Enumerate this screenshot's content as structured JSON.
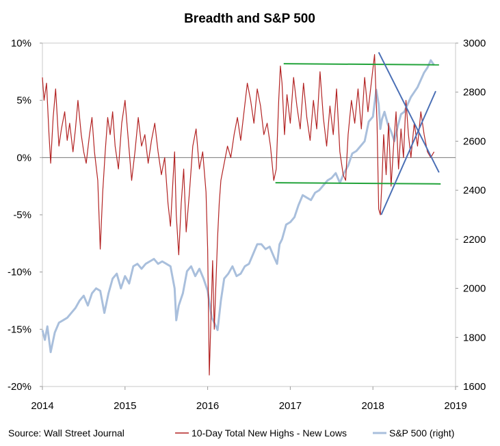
{
  "chart_data": {
    "type": "line",
    "title": "Breadth and S&P 500",
    "source": "Source: Wall Street Journal",
    "x_ticks": [
      "2014",
      "2015",
      "2016",
      "2017",
      "2018",
      "2019"
    ],
    "xlim": [
      2014,
      2019
    ],
    "y_left": {
      "ticks": [
        "10%",
        "5%",
        "0%",
        "-5%",
        "-10%",
        "-15%",
        "-20%"
      ],
      "lim": [
        -20,
        10
      ]
    },
    "y_right": {
      "ticks": [
        "3000",
        "2800",
        "2600",
        "2400",
        "2200",
        "2000",
        "1800",
        "1600"
      ],
      "lim": [
        1600,
        3000
      ]
    },
    "grid": false,
    "legend": "bottom",
    "series": [
      {
        "name": "10-Day Total New Highs - New Lows",
        "axis": "left",
        "color": "#b22222",
        "x": [
          2014.0,
          2014.02,
          2014.05,
          2014.08,
          2014.1,
          2014.13,
          2014.16,
          2014.2,
          2014.23,
          2014.27,
          2014.3,
          2014.33,
          2014.37,
          2014.4,
          2014.43,
          2014.47,
          2014.5,
          2014.53,
          2014.57,
          2014.6,
          2014.63,
          2014.67,
          2014.7,
          2014.73,
          2014.76,
          2014.79,
          2014.82,
          2014.85,
          2014.88,
          2014.92,
          2014.96,
          2015.0,
          2015.04,
          2015.08,
          2015.12,
          2015.16,
          2015.2,
          2015.24,
          2015.28,
          2015.32,
          2015.36,
          2015.4,
          2015.44,
          2015.48,
          2015.52,
          2015.55,
          2015.58,
          2015.6,
          2015.62,
          2015.65,
          2015.68,
          2015.71,
          2015.74,
          2015.78,
          2015.82,
          2015.86,
          2015.9,
          2015.94,
          2015.98,
          2016.0,
          2016.02,
          2016.04,
          2016.06,
          2016.08,
          2016.1,
          2016.12,
          2016.14,
          2016.16,
          2016.2,
          2016.24,
          2016.28,
          2016.32,
          2016.36,
          2016.4,
          2016.44,
          2016.48,
          2016.52,
          2016.56,
          2016.6,
          2016.64,
          2016.68,
          2016.72,
          2016.76,
          2016.8,
          2016.83,
          2016.86,
          2016.88,
          2016.9,
          2016.93,
          2016.96,
          2017.0,
          2017.04,
          2017.08,
          2017.12,
          2017.16,
          2017.2,
          2017.24,
          2017.28,
          2017.32,
          2017.36,
          2017.4,
          2017.44,
          2017.48,
          2017.52,
          2017.56,
          2017.6,
          2017.64,
          2017.67,
          2017.7,
          2017.74,
          2017.78,
          2017.82,
          2017.86,
          2017.9,
          2017.94,
          2017.98,
          2018.02,
          2018.05,
          2018.07,
          2018.09,
          2018.11,
          2018.13,
          2018.16,
          2018.19,
          2018.22,
          2018.25,
          2018.28,
          2018.31,
          2018.34,
          2018.37,
          2018.4,
          2018.43,
          2018.46,
          2018.5,
          2018.54,
          2018.58,
          2018.62,
          2018.66,
          2018.7,
          2018.74
        ],
        "values": [
          7.0,
          5.0,
          6.5,
          2.0,
          -0.5,
          3.5,
          6.0,
          1.0,
          2.5,
          4.0,
          1.5,
          3.0,
          0.5,
          2.5,
          5.0,
          2.0,
          0.5,
          -0.5,
          2.0,
          3.5,
          0.5,
          -2.0,
          -8.0,
          -3.0,
          0.5,
          3.5,
          2.0,
          4.0,
          1.0,
          -1.0,
          3.0,
          5.0,
          1.5,
          -2.0,
          0.5,
          3.5,
          1.0,
          2.0,
          -0.5,
          1.5,
          3.0,
          0.5,
          -1.5,
          0.0,
          -4.0,
          -6.0,
          -2.0,
          0.5,
          -5.0,
          -8.5,
          -4.0,
          -1.0,
          -6.5,
          -3.0,
          1.0,
          2.5,
          -1.0,
          0.5,
          -3.0,
          -8.0,
          -19.0,
          -14.0,
          -9.0,
          -15.0,
          -11.0,
          -7.0,
          -4.0,
          -2.0,
          -0.5,
          1.0,
          0.0,
          2.0,
          3.5,
          1.5,
          4.0,
          6.5,
          5.0,
          3.0,
          6.0,
          4.5,
          2.0,
          3.0,
          1.0,
          -2.0,
          -1.0,
          5.0,
          8.0,
          6.5,
          2.0,
          5.5,
          3.0,
          7.0,
          4.5,
          2.5,
          6.5,
          3.5,
          1.5,
          5.0,
          2.5,
          7.5,
          3.5,
          1.0,
          4.5,
          2.0,
          6.0,
          0.5,
          -1.5,
          -2.0,
          2.0,
          5.0,
          3.0,
          6.0,
          2.5,
          7.0,
          4.0,
          6.5,
          9.0,
          3.0,
          -4.5,
          -5.0,
          -2.0,
          2.0,
          -1.5,
          3.0,
          -2.5,
          1.0,
          4.0,
          -1.0,
          2.5,
          0.0,
          5.0,
          2.0,
          0.0,
          3.0,
          1.0,
          4.0,
          2.0,
          0.5,
          0.0,
          0.5
        ]
      },
      {
        "name": "S&P 500 (right)",
        "axis": "right",
        "color": "#a9bfdc",
        "x": [
          2014.0,
          2014.03,
          2014.06,
          2014.1,
          2014.15,
          2014.2,
          2014.25,
          2014.3,
          2014.35,
          2014.4,
          2014.45,
          2014.5,
          2014.55,
          2014.6,
          2014.65,
          2014.7,
          2014.75,
          2014.8,
          2014.85,
          2014.9,
          2014.95,
          2015.0,
          2015.05,
          2015.1,
          2015.15,
          2015.2,
          2015.25,
          2015.3,
          2015.35,
          2015.4,
          2015.45,
          2015.5,
          2015.55,
          2015.6,
          2015.62,
          2015.65,
          2015.7,
          2015.75,
          2015.8,
          2015.85,
          2015.9,
          2015.95,
          2016.0,
          2016.05,
          2016.08,
          2016.12,
          2016.16,
          2016.2,
          2016.25,
          2016.3,
          2016.35,
          2016.4,
          2016.45,
          2016.5,
          2016.55,
          2016.6,
          2016.65,
          2016.7,
          2016.75,
          2016.8,
          2016.84,
          2016.87,
          2016.9,
          2016.95,
          2017.0,
          2017.05,
          2017.1,
          2017.15,
          2017.2,
          2017.25,
          2017.3,
          2017.35,
          2017.4,
          2017.45,
          2017.5,
          2017.55,
          2017.6,
          2017.65,
          2017.7,
          2017.75,
          2017.8,
          2017.85,
          2017.9,
          2017.95,
          2018.0,
          2018.04,
          2018.07,
          2018.09,
          2018.11,
          2018.14,
          2018.18,
          2018.22,
          2018.26,
          2018.3,
          2018.34,
          2018.38,
          2018.42,
          2018.46,
          2018.5,
          2018.54,
          2018.58,
          2018.62,
          2018.66,
          2018.7,
          2018.74
        ],
        "values": [
          1830,
          1790,
          1845,
          1740,
          1820,
          1860,
          1870,
          1880,
          1900,
          1920,
          1950,
          1970,
          1930,
          1980,
          2000,
          1990,
          1900,
          1980,
          2040,
          2060,
          2000,
          2050,
          2020,
          2090,
          2100,
          2080,
          2100,
          2110,
          2120,
          2100,
          2110,
          2100,
          2090,
          2000,
          1870,
          1930,
          1980,
          2070,
          2090,
          2050,
          2080,
          2040,
          1990,
          1880,
          1860,
          1830,
          1950,
          2040,
          2060,
          2090,
          2050,
          2060,
          2090,
          2100,
          2140,
          2180,
          2180,
          2160,
          2170,
          2130,
          2100,
          2180,
          2200,
          2260,
          2270,
          2290,
          2340,
          2380,
          2370,
          2360,
          2390,
          2400,
          2420,
          2440,
          2450,
          2470,
          2430,
          2470,
          2500,
          2550,
          2560,
          2580,
          2600,
          2680,
          2700,
          2810,
          2750,
          2650,
          2690,
          2720,
          2670,
          2640,
          2600,
          2660,
          2710,
          2720,
          2750,
          2780,
          2800,
          2820,
          2850,
          2880,
          2900,
          2930,
          2910
        ]
      }
    ],
    "annotations": {
      "green_lines": [
        {
          "x0": 2016.92,
          "y0": 8.2,
          "x1": 2018.8,
          "y1": 8.1
        },
        {
          "x0": 2016.82,
          "y0": -2.2,
          "x1": 2018.82,
          "y1": -2.3
        }
      ],
      "blue_lines": [
        {
          "x0": 2018.07,
          "y0": 9.2,
          "x1": 2018.8,
          "y1": -1.3
        },
        {
          "x0": 2018.1,
          "y0": -5.0,
          "x1": 2018.76,
          "y1": 5.8
        }
      ]
    }
  }
}
